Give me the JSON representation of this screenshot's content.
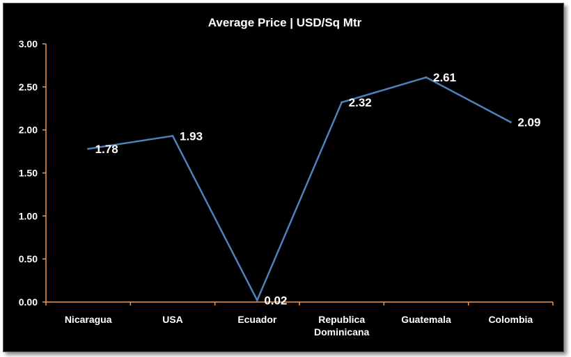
{
  "chart_data": {
    "type": "line",
    "title": "Average Price | USD/Sq Mtr",
    "xlabel": "",
    "ylabel": "",
    "categories": [
      "Nicaragua",
      "USA",
      "Ecuador",
      "Republica Dominicana",
      "Guatemala",
      "Colombia"
    ],
    "series": [
      {
        "values": [
          1.78,
          1.93,
          0.02,
          2.32,
          2.61,
          2.09
        ],
        "color": "#4f81bd"
      }
    ],
    "data_labels": [
      "1.78",
      "1.93",
      "0.02",
      "2.32",
      "2.61",
      "2.09"
    ],
    "yticks": [
      "0.00",
      "0.50",
      "1.00",
      "1.50",
      "2.00",
      "2.50",
      "3.00"
    ],
    "ylim": [
      0,
      3
    ],
    "grid": false,
    "legend": "none",
    "colors": {
      "background": "#000000",
      "axis": "#f79646",
      "line": "#4f81bd",
      "text": "#ffffff"
    }
  }
}
